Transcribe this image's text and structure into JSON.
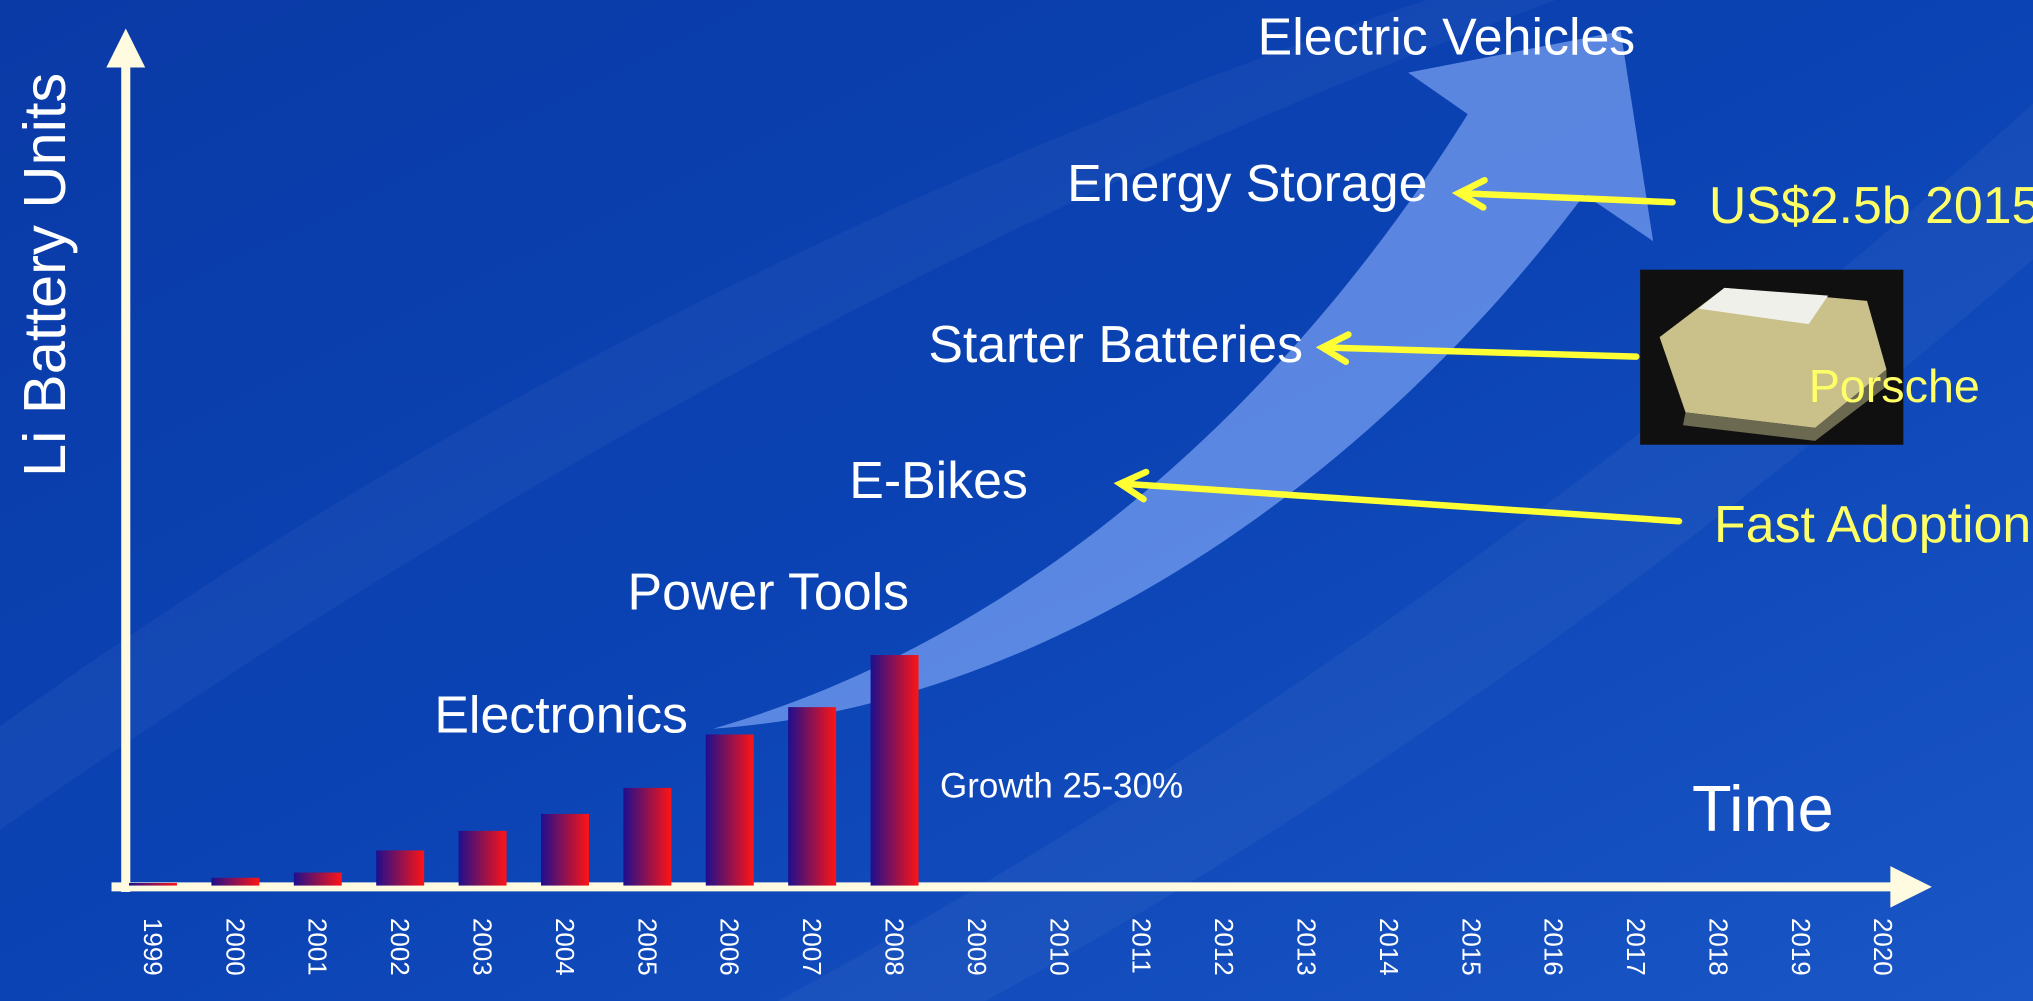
{
  "chart_data": {
    "type": "bar",
    "ylabel": "Li Battery Units",
    "xlabel": "Time",
    "categories": [
      "1999",
      "2000",
      "2001",
      "2002",
      "2003",
      "2004",
      "2005",
      "2006",
      "2007",
      "2008",
      "2009",
      "2010",
      "2011",
      "2012",
      "2013",
      "2014",
      "2015",
      "2016",
      "2017",
      "2018",
      "2019",
      "2020"
    ],
    "values": [
      2,
      6,
      10,
      27,
      42,
      55,
      75,
      116,
      137,
      177,
      null,
      null,
      null,
      null,
      null,
      null,
      null,
      null,
      null,
      null,
      null,
      null
    ],
    "gradient": [
      "#1e0f8e",
      "#ff1414"
    ],
    "ylim": [
      0,
      650
    ],
    "annotations": [
      "Electronics",
      "Power Tools",
      "E-Bikes",
      "Starter Batteries",
      "Energy Storage",
      "Electric Vehicles"
    ],
    "growth_note": "Growth 25-30%",
    "callouts": [
      "US$2.5b 2015",
      "Porsche",
      "Fast Adoption"
    ]
  }
}
